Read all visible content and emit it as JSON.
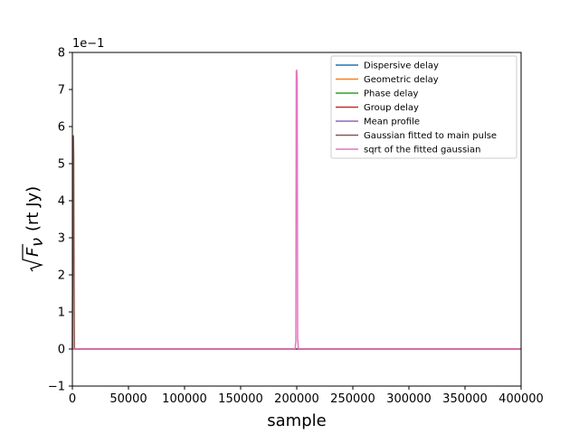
{
  "chart_data": {
    "type": "line",
    "title": "",
    "xlabel": "sample",
    "ylabel": "√F_ν (rt Jy)",
    "ylabel_parts": {
      "main": "F",
      "sub": "ν",
      "units": "(rt Jy)"
    },
    "offset_text": "1e−1",
    "xlim": [
      0,
      400000
    ],
    "ylim": [
      -1,
      8
    ],
    "xticks": [
      0,
      50000,
      100000,
      150000,
      200000,
      250000,
      300000,
      350000,
      400000
    ],
    "xtick_labels": [
      "0",
      "50000",
      "100000",
      "150000",
      "200000",
      "250000",
      "300000",
      "350000",
      "400000"
    ],
    "yticks": [
      -1,
      0,
      1,
      2,
      3,
      4,
      5,
      6,
      7,
      8
    ],
    "ytick_labels": [
      "−1",
      "0",
      "1",
      "2",
      "3",
      "4",
      "5",
      "6",
      "7",
      "8"
    ],
    "grid": false,
    "legend_position": "top-right",
    "series": [
      {
        "name": "Dispersive delay",
        "color": "#1f77b4",
        "x": [
          0,
          400000
        ],
        "y": [
          0,
          0
        ]
      },
      {
        "name": "Geometric delay",
        "color": "#ff7f0e",
        "x": [
          0,
          400000
        ],
        "y": [
          0,
          0
        ]
      },
      {
        "name": "Phase delay",
        "color": "#2ca02c",
        "x": [
          0,
          400000
        ],
        "y": [
          0,
          0
        ]
      },
      {
        "name": "Group delay",
        "color": "#d62728",
        "x": [
          0,
          400000
        ],
        "y": [
          0,
          0
        ]
      },
      {
        "name": "Mean profile",
        "color": "#9467bd",
        "x": [
          0,
          400000
        ],
        "y": [
          0,
          0
        ]
      },
      {
        "name": "Gaussian fitted to main pulse",
        "color": "#8c564b",
        "x": [
          0,
          300,
          600,
          900,
          1200,
          1500,
          1800,
          2100,
          400000
        ],
        "y": [
          0,
          2.5,
          5.7,
          5.75,
          5.2,
          2.0,
          0.05,
          0,
          0
        ]
      },
      {
        "name": "sqrt of the fitted gaussian",
        "color": "#e377c2",
        "x": [
          0,
          1600,
          2200,
          198500,
          199200,
          199600,
          200000,
          200400,
          200800,
          201500,
          400000
        ],
        "y": [
          0,
          0,
          0,
          0,
          0.2,
          7.5,
          7.52,
          7.3,
          0.3,
          0,
          0
        ]
      }
    ]
  }
}
